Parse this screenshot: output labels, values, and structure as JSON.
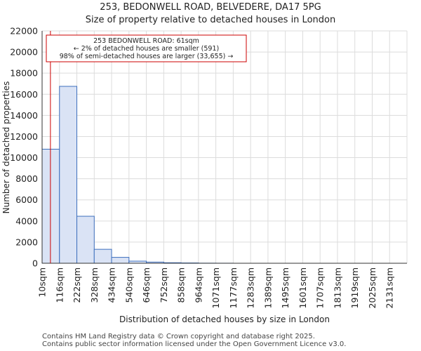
{
  "chart_data": {
    "type": "bar",
    "title_line1": "253, BEDONWELL ROAD, BELVEDERE, DA17 5PG",
    "title_line2": "Size of property relative to detached houses in London",
    "xlabel": "Distribution of detached houses by size in London",
    "ylabel": "Number of detached properties",
    "categories": [
      "10sqm",
      "116sqm",
      "222sqm",
      "328sqm",
      "434sqm",
      "540sqm",
      "646sqm",
      "752sqm",
      "858sqm",
      "964sqm",
      "1071sqm",
      "1177sqm",
      "1283sqm",
      "1389sqm",
      "1495sqm",
      "1601sqm",
      "1707sqm",
      "1813sqm",
      "1919sqm",
      "2025sqm",
      "2131sqm"
    ],
    "values": [
      10800,
      16750,
      4450,
      1320,
      560,
      200,
      110,
      50,
      30,
      10,
      5,
      0,
      0,
      0,
      0,
      0,
      0,
      0,
      0,
      0,
      0
    ],
    "ylim": [
      0,
      22000
    ],
    "yticks": [
      0,
      2000,
      4000,
      6000,
      8000,
      10000,
      12000,
      14000,
      16000,
      18000,
      20000,
      22000
    ],
    "ytick_labels": [
      "0",
      "2000",
      "4000",
      "6000",
      "8000",
      "10000",
      "12000",
      "14000",
      "16000",
      "18000",
      "20000",
      "22000"
    ],
    "grid": true,
    "bar_color": "#dae3f5",
    "bar_edge_color": "#3d6fbd",
    "marker": {
      "value_bin": 0.48,
      "color": "#cc0000",
      "label_line1": "253 BEDONWELL ROAD: 61sqm",
      "label_line2": "← 2% of detached houses are smaller (591)",
      "label_line3": "98% of semi-detached houses are larger (33,655) →"
    }
  },
  "footer": {
    "line1": "Contains HM Land Registry data © Crown copyright and database right 2025.",
    "line2": "Contains public sector information licensed under the Open Government Licence v3.0."
  }
}
